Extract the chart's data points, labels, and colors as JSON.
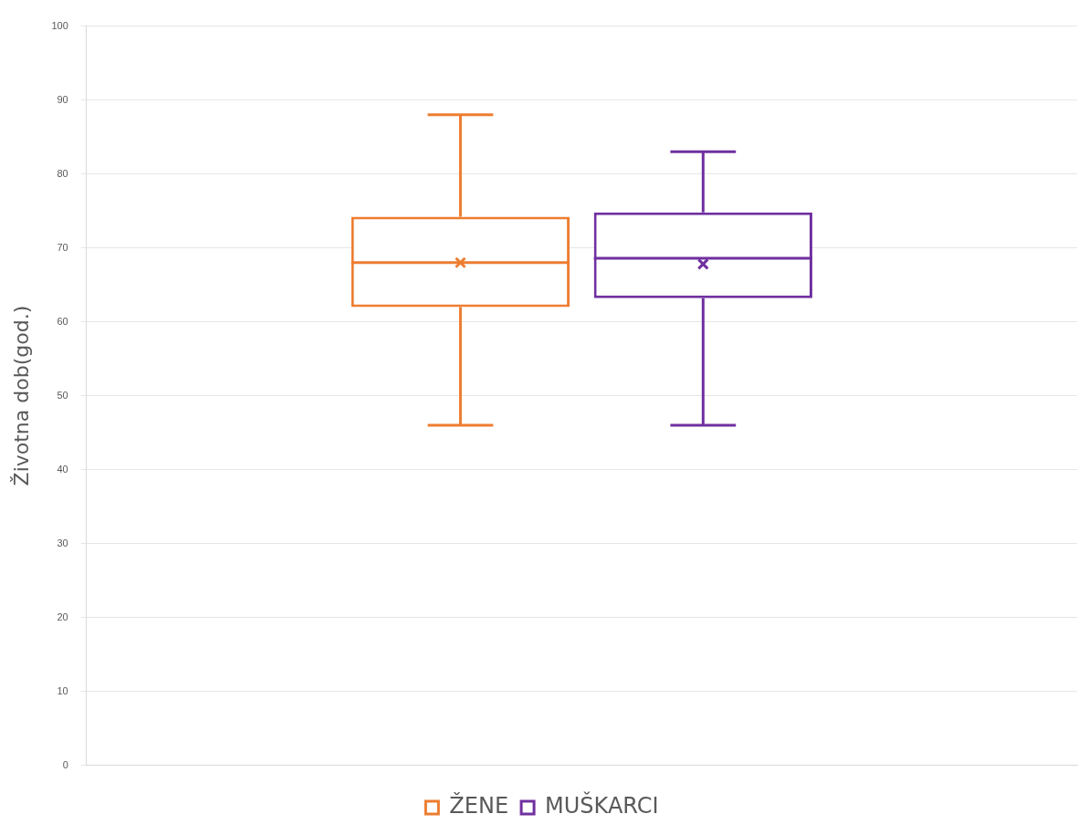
{
  "chart_data": {
    "type": "box",
    "ylabel": "Životna dob(god.)",
    "categories": [
      null
    ],
    "series": [
      {
        "name": "ŽENE",
        "color": "#ed7d31",
        "boxes": [
          {
            "low": 46,
            "q1": 62,
            "median": 68,
            "q3": 74.2,
            "high": 88,
            "mean": 68
          }
        ]
      },
      {
        "name": "MUŠKARCI",
        "color": "#7030a0",
        "boxes": [
          {
            "low": 46,
            "q1": 63.2,
            "median": 68.6,
            "q3": 74.8,
            "high": 83,
            "mean": 67.8
          }
        ]
      }
    ],
    "ylim": [
      0,
      100
    ],
    "yticks": [
      0,
      10,
      20,
      30,
      40,
      50,
      60,
      70,
      80,
      90,
      100
    ],
    "grid": "y",
    "legend": "bottom"
  }
}
